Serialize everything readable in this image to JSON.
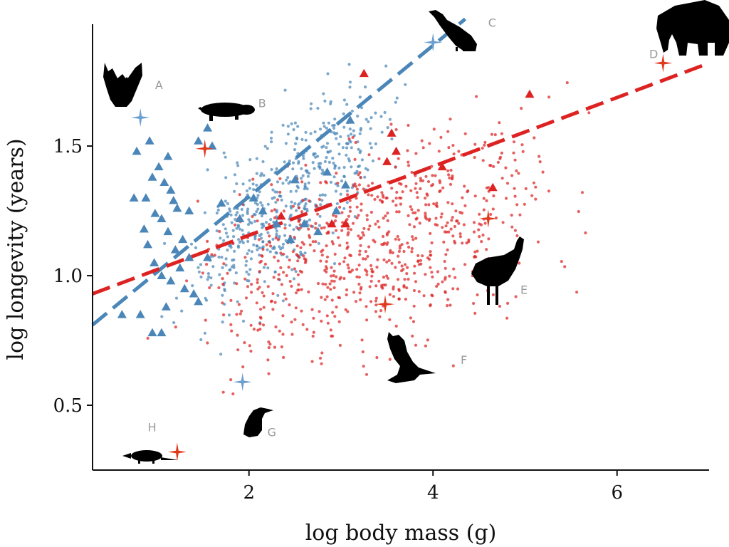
{
  "chart_data": {
    "type": "scatter",
    "title": "",
    "xlabel": "log body mass (g)",
    "ylabel": "log longevity (years)",
    "xlim": [
      0.3,
      7.0
    ],
    "ylim": [
      0.25,
      1.97
    ],
    "x_ticks": [
      2,
      4,
      6
    ],
    "y_ticks": [
      0.5,
      1.0,
      1.5
    ],
    "x_tick_labels": [
      "2",
      "4",
      "6"
    ],
    "y_tick_labels": [
      "0.5",
      "1.0",
      "1.5"
    ],
    "grid": false,
    "legend": "none",
    "colors": {
      "blue": "#4a86b8",
      "red": "#dd2222",
      "star_blue": "#6b9fd0",
      "star_red": "#e03a1e",
      "silhouette": "#000000"
    },
    "series": [
      {
        "color": "blue",
        "marker": "dot",
        "cloud": {
          "x_range": [
            0.8,
            4.0
          ],
          "center_x": 2.4,
          "center_y": 1.3,
          "slope": 0.28,
          "spread_y": 0.22,
          "count": 520
        }
      },
      {
        "color": "red",
        "marker": "dot",
        "cloud": {
          "x_range": [
            0.6,
            6.1
          ],
          "center_x": 3.2,
          "center_y": 1.1,
          "slope": 0.12,
          "spread_y": 0.27,
          "count": 780
        }
      },
      {
        "color": "blue",
        "marker": "triangle",
        "points": [
          [
            0.78,
            1.48
          ],
          [
            0.92,
            1.52
          ],
          [
            1.12,
            1.46
          ],
          [
            1.02,
            1.42
          ],
          [
            0.95,
            1.38
          ],
          [
            1.08,
            1.36
          ],
          [
            1.15,
            1.33
          ],
          [
            0.88,
            1.3
          ],
          [
            1.18,
            1.29
          ],
          [
            1.22,
            1.26
          ],
          [
            0.98,
            1.24
          ],
          [
            1.05,
            1.22
          ],
          [
            0.86,
            1.18
          ],
          [
            1.12,
            1.17
          ],
          [
            1.28,
            1.14
          ],
          [
            0.9,
            1.12
          ],
          [
            1.2,
            1.1
          ],
          [
            1.35,
            1.07
          ],
          [
            0.97,
            1.05
          ],
          [
            1.25,
            1.03
          ],
          [
            1.05,
            1.0
          ],
          [
            1.15,
            0.98
          ],
          [
            1.3,
            0.95
          ],
          [
            1.4,
            0.93
          ],
          [
            1.45,
            0.9
          ],
          [
            1.1,
            0.88
          ],
          [
            0.82,
            0.85
          ],
          [
            0.95,
            0.78
          ],
          [
            1.05,
            0.78
          ],
          [
            1.35,
            1.25
          ],
          [
            1.45,
            1.52
          ],
          [
            1.55,
            1.57
          ],
          [
            1.6,
            1.5
          ],
          [
            1.7,
            1.28
          ],
          [
            1.9,
            1.22
          ],
          [
            2.05,
            1.3
          ],
          [
            2.15,
            1.25
          ],
          [
            2.3,
            1.2
          ],
          [
            2.6,
            1.2
          ],
          [
            2.75,
            1.17
          ],
          [
            2.45,
            1.14
          ],
          [
            2.85,
            1.4
          ],
          [
            3.05,
            1.35
          ],
          [
            2.95,
            1.25
          ],
          [
            3.1,
            1.6
          ],
          [
            2.5,
            1.37
          ],
          [
            0.75,
            1.3
          ],
          [
            1.55,
            1.07
          ],
          [
            0.62,
            0.85
          ]
        ]
      },
      {
        "color": "red",
        "marker": "triangle",
        "points": [
          [
            3.25,
            1.78
          ],
          [
            3.55,
            1.55
          ],
          [
            3.6,
            1.48
          ],
          [
            3.5,
            1.44
          ],
          [
            4.1,
            1.42
          ],
          [
            4.65,
            1.34
          ],
          [
            5.05,
            1.7
          ],
          [
            2.35,
            1.23
          ],
          [
            2.9,
            1.2
          ],
          [
            3.05,
            1.2
          ]
        ]
      },
      {
        "color": "blue",
        "marker": "star",
        "points": [
          [
            0.82,
            1.61
          ],
          [
            4.0,
            1.9
          ],
          [
            1.93,
            0.59
          ]
        ]
      },
      {
        "color": "red",
        "marker": "star",
        "points": [
          [
            1.52,
            1.49
          ],
          [
            6.5,
            1.82
          ],
          [
            4.6,
            1.22
          ],
          [
            3.48,
            0.89
          ],
          [
            1.22,
            0.32
          ]
        ]
      }
    ],
    "trend_lines": [
      {
        "color": "blue",
        "style": "dashed",
        "from": [
          0.3,
          0.81
        ],
        "to": [
          4.35,
          1.99
        ]
      },
      {
        "color": "red",
        "style": "dashed",
        "from": [
          0.3,
          0.93
        ],
        "to": [
          7.0,
          1.82
        ]
      }
    ],
    "annotations": [
      {
        "label": "A",
        "animal": "bat",
        "at": [
          0.98,
          1.72
        ]
      },
      {
        "label": "B",
        "animal": "mole-rat",
        "at": [
          2.1,
          1.65
        ]
      },
      {
        "label": "C",
        "animal": "vulture",
        "at": [
          4.6,
          1.96
        ]
      },
      {
        "label": "D",
        "animal": "elephant",
        "at": [
          6.35,
          1.84
        ]
      },
      {
        "label": "E",
        "animal": "emu",
        "at": [
          4.95,
          0.93
        ]
      },
      {
        "label": "F",
        "animal": "wallaby",
        "at": [
          4.3,
          0.66
        ]
      },
      {
        "label": "G",
        "animal": "penguin",
        "at": [
          2.2,
          0.38
        ]
      },
      {
        "label": "H",
        "animal": "shrew",
        "at": [
          0.9,
          0.4
        ]
      }
    ]
  }
}
